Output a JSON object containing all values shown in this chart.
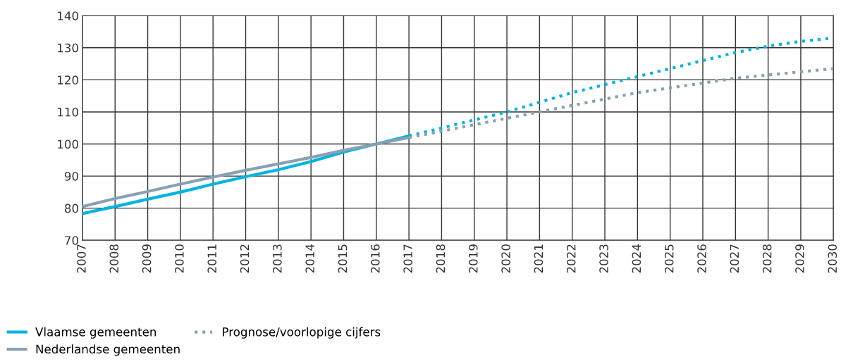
{
  "chart_data": {
    "type": "line",
    "xlim": [
      2007,
      2030
    ],
    "xticks": [
      2007,
      2008,
      2009,
      2010,
      2011,
      2012,
      2013,
      2014,
      2015,
      2016,
      2017,
      2018,
      2019,
      2020,
      2021,
      2022,
      2023,
      2024,
      2025,
      2026,
      2027,
      2028,
      2029,
      2030
    ],
    "ylim": [
      70,
      140
    ],
    "yticks": [
      70,
      80,
      90,
      100,
      110,
      120,
      130,
      140
    ],
    "grid": true,
    "legend": "bottom left",
    "marker": "none",
    "series": [
      {
        "name": "Vlaamse gemeenten",
        "color": "#00b4e0",
        "line_style": "solid",
        "x": [
          2007,
          2008,
          2009,
          2010,
          2011,
          2012,
          2013,
          2014,
          2015,
          2016,
          2017
        ],
        "values": [
          78.3,
          80.5,
          82.8,
          85,
          87.5,
          89.8,
          92,
          94.5,
          97.5,
          100,
          102.5
        ]
      },
      {
        "name": "Nederlandse gemeenten",
        "color": "#87a1b1",
        "line_style": "solid",
        "x": [
          2007,
          2008,
          2009,
          2010,
          2011,
          2012,
          2013,
          2014,
          2015,
          2016,
          2017
        ],
        "values": [
          80.5,
          83,
          85.2,
          87.5,
          89.7,
          91.8,
          93.8,
          95.8,
          98,
          100,
          102
        ]
      },
      {
        "color": "#00b4e0",
        "line_style": "dotted",
        "x": [
          2017,
          2018,
          2019,
          2020,
          2021,
          2022,
          2023,
          2024,
          2025,
          2026,
          2027,
          2028,
          2029,
          2030
        ],
        "values": [
          102.5,
          105,
          107.5,
          110,
          113,
          116,
          118.5,
          121,
          123.5,
          126,
          128.5,
          130.5,
          132,
          133
        ]
      },
      {
        "name": "Prognose/voorlopige cijfers",
        "color": "#87a1b1",
        "line_style": "dotted",
        "x": [
          2017,
          2018,
          2019,
          2020,
          2021,
          2022,
          2023,
          2024,
          2025,
          2026,
          2027,
          2028,
          2029,
          2030
        ],
        "values": [
          102,
          104,
          106,
          108,
          110,
          112,
          114,
          116,
          117.5,
          119,
          120.5,
          121.5,
          122.5,
          123.5
        ]
      }
    ]
  }
}
